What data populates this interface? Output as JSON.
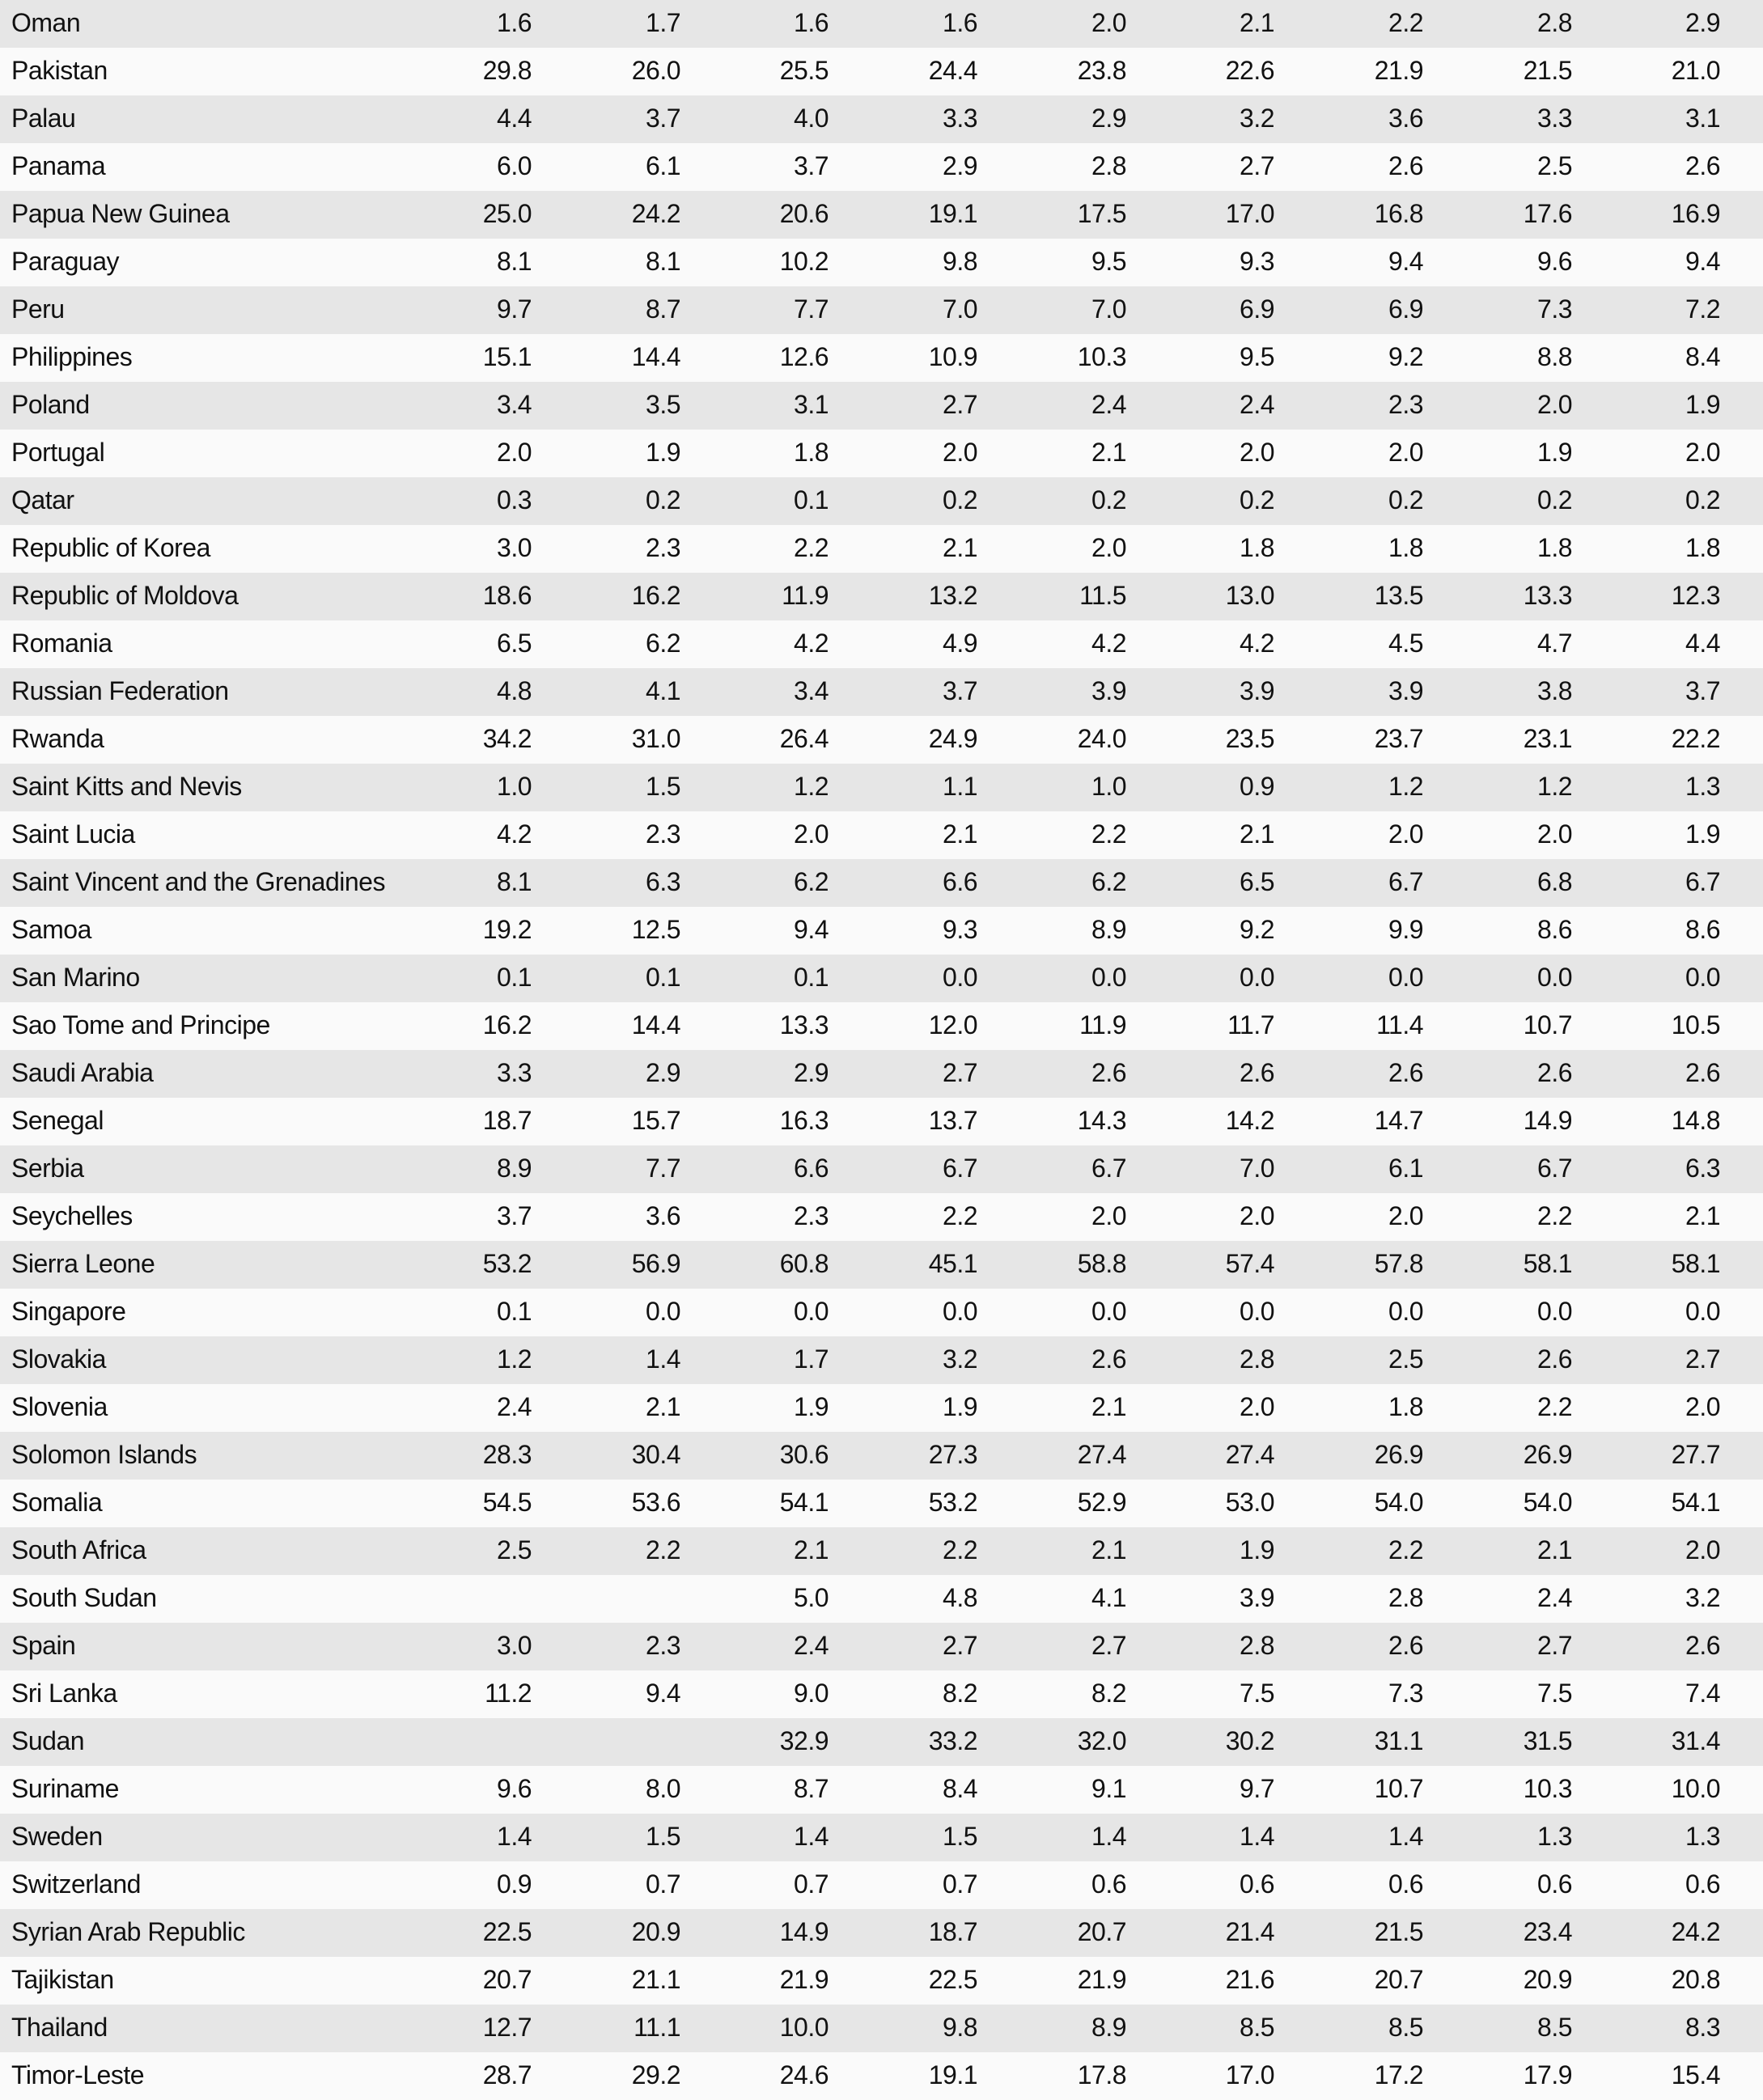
{
  "table": {
    "rows": [
      [
        "Oman",
        "1.6",
        "1.7",
        "1.6",
        "1.6",
        "2.0",
        "2.1",
        "2.2",
        "2.8",
        "2.9"
      ],
      [
        "Pakistan",
        "29.8",
        "26.0",
        "25.5",
        "24.4",
        "23.8",
        "22.6",
        "21.9",
        "21.5",
        "21.0"
      ],
      [
        "Palau",
        "4.4",
        "3.7",
        "4.0",
        "3.3",
        "2.9",
        "3.2",
        "3.6",
        "3.3",
        "3.1"
      ],
      [
        "Panama",
        "6.0",
        "6.1",
        "3.7",
        "2.9",
        "2.8",
        "2.7",
        "2.6",
        "2.5",
        "2.6"
      ],
      [
        "Papua New Guinea",
        "25.0",
        "24.2",
        "20.6",
        "19.1",
        "17.5",
        "17.0",
        "16.8",
        "17.6",
        "16.9"
      ],
      [
        "Paraguay",
        "8.1",
        "8.1",
        "10.2",
        "9.8",
        "9.5",
        "9.3",
        "9.4",
        "9.6",
        "9.4"
      ],
      [
        "Peru",
        "9.7",
        "8.7",
        "7.7",
        "7.0",
        "7.0",
        "6.9",
        "6.9",
        "7.3",
        "7.2"
      ],
      [
        "Philippines",
        "15.1",
        "14.4",
        "12.6",
        "10.9",
        "10.3",
        "9.5",
        "9.2",
        "8.8",
        "8.4"
      ],
      [
        "Poland",
        "3.4",
        "3.5",
        "3.1",
        "2.7",
        "2.4",
        "2.4",
        "2.3",
        "2.0",
        "1.9"
      ],
      [
        "Portugal",
        "2.0",
        "1.9",
        "1.8",
        "2.0",
        "2.1",
        "2.0",
        "2.0",
        "1.9",
        "2.0"
      ],
      [
        "Qatar",
        "0.3",
        "0.2",
        "0.1",
        "0.2",
        "0.2",
        "0.2",
        "0.2",
        "0.2",
        "0.2"
      ],
      [
        "Republic of Korea",
        "3.0",
        "2.3",
        "2.2",
        "2.1",
        "2.0",
        "1.8",
        "1.8",
        "1.8",
        "1.8"
      ],
      [
        "Republic of Moldova",
        "18.6",
        "16.2",
        "11.9",
        "13.2",
        "11.5",
        "13.0",
        "13.5",
        "13.3",
        "12.3"
      ],
      [
        "Romania",
        "6.5",
        "6.2",
        "4.2",
        "4.9",
        "4.2",
        "4.2",
        "4.5",
        "4.7",
        "4.4"
      ],
      [
        "Russian Federation",
        "4.8",
        "4.1",
        "3.4",
        "3.7",
        "3.9",
        "3.9",
        "3.9",
        "3.8",
        "3.7"
      ],
      [
        "Rwanda",
        "34.2",
        "31.0",
        "26.4",
        "24.9",
        "24.0",
        "23.5",
        "23.7",
        "23.1",
        "22.2"
      ],
      [
        "Saint Kitts and Nevis",
        "1.0",
        "1.5",
        "1.2",
        "1.1",
        "1.0",
        "0.9",
        "1.2",
        "1.2",
        "1.3"
      ],
      [
        "Saint Lucia",
        "4.2",
        "2.3",
        "2.0",
        "2.1",
        "2.2",
        "2.1",
        "2.0",
        "2.0",
        "1.9"
      ],
      [
        "Saint Vincent and the Grenadines",
        "8.1",
        "6.3",
        "6.2",
        "6.6",
        "6.2",
        "6.5",
        "6.7",
        "6.8",
        "6.7"
      ],
      [
        "Samoa",
        "19.2",
        "12.5",
        "9.4",
        "9.3",
        "8.9",
        "9.2",
        "9.9",
        "8.6",
        "8.6"
      ],
      [
        "San Marino",
        "0.1",
        "0.1",
        "0.1",
        "0.0",
        "0.0",
        "0.0",
        "0.0",
        "0.0",
        "0.0"
      ],
      [
        "Sao Tome and Principe",
        "16.2",
        "14.4",
        "13.3",
        "12.0",
        "11.9",
        "11.7",
        "11.4",
        "10.7",
        "10.5"
      ],
      [
        "Saudi Arabia",
        "3.3",
        "2.9",
        "2.9",
        "2.7",
        "2.6",
        "2.6",
        "2.6",
        "2.6",
        "2.6"
      ],
      [
        "Senegal",
        "18.7",
        "15.7",
        "16.3",
        "13.7",
        "14.3",
        "14.2",
        "14.7",
        "14.9",
        "14.8"
      ],
      [
        "Serbia",
        "8.9",
        "7.7",
        "6.6",
        "6.7",
        "6.7",
        "7.0",
        "6.1",
        "6.7",
        "6.3"
      ],
      [
        "Seychelles",
        "3.7",
        "3.6",
        "2.3",
        "2.2",
        "2.0",
        "2.0",
        "2.0",
        "2.2",
        "2.1"
      ],
      [
        "Sierra Leone",
        "53.2",
        "56.9",
        "60.8",
        "45.1",
        "58.8",
        "57.4",
        "57.8",
        "58.1",
        "58.1"
      ],
      [
        "Singapore",
        "0.1",
        "0.0",
        "0.0",
        "0.0",
        "0.0",
        "0.0",
        "0.0",
        "0.0",
        "0.0"
      ],
      [
        "Slovakia",
        "1.2",
        "1.4",
        "1.7",
        "3.2",
        "2.6",
        "2.8",
        "2.5",
        "2.6",
        "2.7"
      ],
      [
        "Slovenia",
        "2.4",
        "2.1",
        "1.9",
        "1.9",
        "2.1",
        "2.0",
        "1.8",
        "2.2",
        "2.0"
      ],
      [
        "Solomon Islands",
        "28.3",
        "30.4",
        "30.6",
        "27.3",
        "27.4",
        "27.4",
        "26.9",
        "26.9",
        "27.7"
      ],
      [
        "Somalia",
        "54.5",
        "53.6",
        "54.1",
        "53.2",
        "52.9",
        "53.0",
        "54.0",
        "54.0",
        "54.1"
      ],
      [
        "South Africa",
        "2.5",
        "2.2",
        "2.1",
        "2.2",
        "2.1",
        "1.9",
        "2.2",
        "2.1",
        "2.0"
      ],
      [
        "South Sudan",
        "",
        "",
        "5.0",
        "4.8",
        "4.1",
        "3.9",
        "2.8",
        "2.4",
        "3.2"
      ],
      [
        "Spain",
        "3.0",
        "2.3",
        "2.4",
        "2.7",
        "2.7",
        "2.8",
        "2.6",
        "2.7",
        "2.6"
      ],
      [
        "Sri Lanka",
        "11.2",
        "9.4",
        "9.0",
        "8.2",
        "8.2",
        "7.5",
        "7.3",
        "7.5",
        "7.4"
      ],
      [
        "Sudan",
        "",
        "",
        "32.9",
        "33.2",
        "32.0",
        "30.2",
        "31.1",
        "31.5",
        "31.4"
      ],
      [
        "Suriname",
        "9.6",
        "8.0",
        "8.7",
        "8.4",
        "9.1",
        "9.7",
        "10.7",
        "10.3",
        "10.0"
      ],
      [
        "Sweden",
        "1.4",
        "1.5",
        "1.4",
        "1.5",
        "1.4",
        "1.4",
        "1.4",
        "1.3",
        "1.3"
      ],
      [
        "Switzerland",
        "0.9",
        "0.7",
        "0.7",
        "0.7",
        "0.6",
        "0.6",
        "0.6",
        "0.6",
        "0.6"
      ],
      [
        "Syrian Arab Republic",
        "22.5",
        "20.9",
        "14.9",
        "18.7",
        "20.7",
        "21.4",
        "21.5",
        "23.4",
        "24.2"
      ],
      [
        "Tajikistan",
        "20.7",
        "21.1",
        "21.9",
        "22.5",
        "21.9",
        "21.6",
        "20.7",
        "20.9",
        "20.8"
      ],
      [
        "Thailand",
        "12.7",
        "11.1",
        "10.0",
        "9.8",
        "8.9",
        "8.5",
        "8.5",
        "8.5",
        "8.3"
      ],
      [
        "Timor-Leste",
        "28.7",
        "29.2",
        "24.6",
        "19.1",
        "17.8",
        "17.0",
        "17.2",
        "17.9",
        "15.4"
      ]
    ]
  }
}
